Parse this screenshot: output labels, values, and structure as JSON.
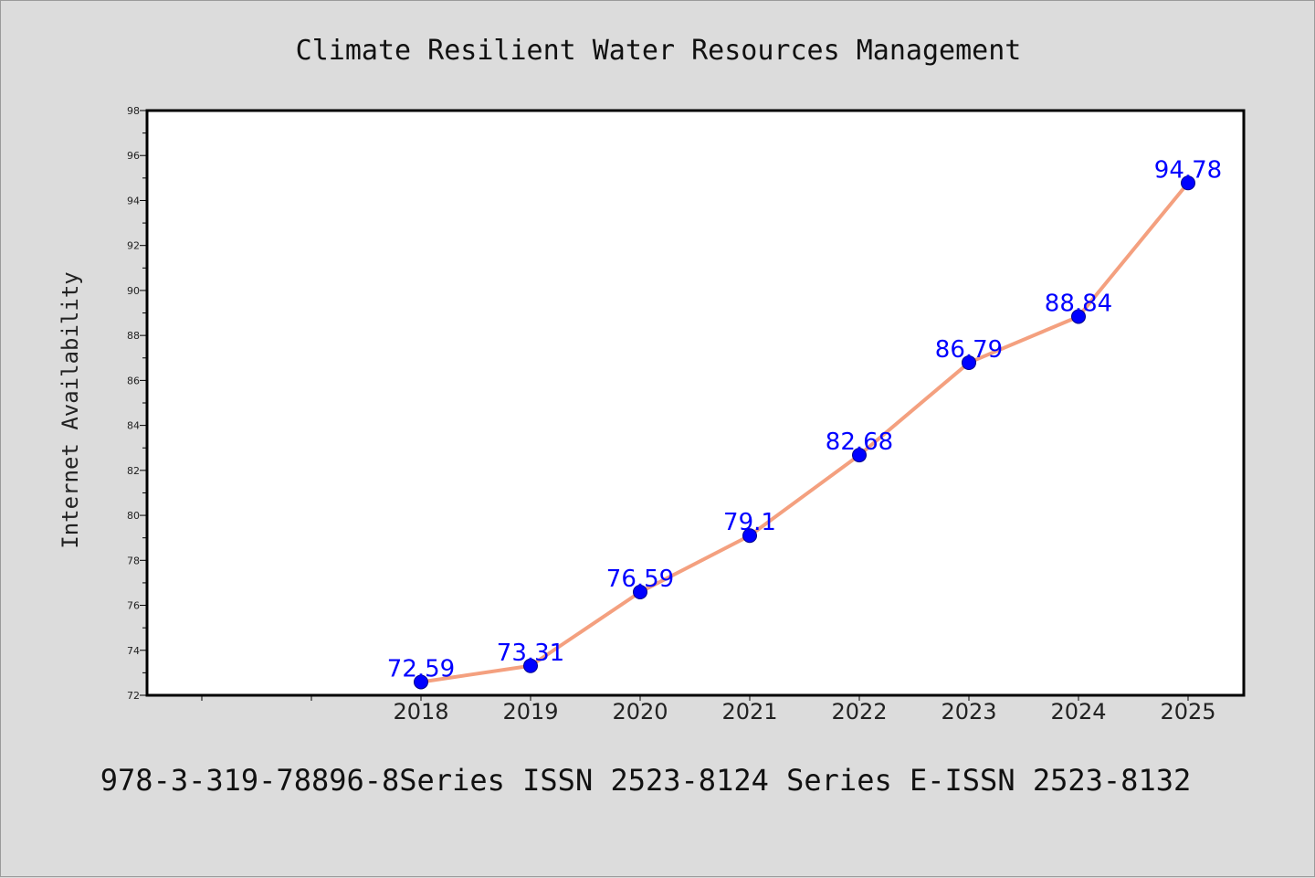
{
  "chart_data": {
    "type": "line",
    "title": "Climate Resilient Water Resources Management",
    "xlabel": "",
    "ylabel": "Internet Availability",
    "categories": [
      "2018",
      "2019",
      "2020",
      "2021",
      "2022",
      "2023",
      "2024",
      "2025"
    ],
    "series": [
      {
        "values": [
          72.59,
          73.31,
          76.59,
          79.1,
          82.68,
          86.79,
          88.84,
          94.78
        ],
        "labels": [
          "72.59",
          "73.31",
          "76.59",
          "79.1",
          "82.68",
          "86.79",
          "88.84",
          "94.78"
        ],
        "line_color": "#f4a07f",
        "marker_color": "#0000ff"
      }
    ],
    "ylim": [
      72,
      98
    ],
    "yticks": [
      "72",
      "74",
      "76",
      "78",
      "80",
      "82",
      "84",
      "86",
      "88",
      "90",
      "92",
      "94",
      "96",
      "98"
    ],
    "grid": false,
    "legend": "none"
  },
  "footer": {
    "text": "978-3-319-78896-8Series ISSN 2523-8124 Series E-ISSN 2523-8132"
  }
}
